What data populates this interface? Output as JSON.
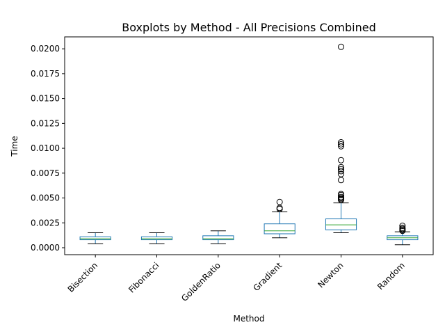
{
  "chart_data": {
    "type": "boxplot",
    "title": "Boxplots by Method - All Precisions Combined",
    "xlabel": "Method",
    "ylabel": "Time",
    "ylim": [
      -0.0007,
      0.0212
    ],
    "yticks": [
      "0.0000",
      "0.0025",
      "0.0050",
      "0.0075",
      "0.0100",
      "0.0125",
      "0.0150",
      "0.0175",
      "0.0200"
    ],
    "ytick_values": [
      0.0,
      0.0025,
      0.005,
      0.0075,
      0.01,
      0.0125,
      0.015,
      0.0175,
      0.02
    ],
    "categories": [
      "Bisection",
      "Fibonacci",
      "GoldenRatio",
      "Gradient",
      "Newton",
      "Random"
    ],
    "boxes": [
      {
        "whisker_low": 0.0004,
        "q1": 0.0008,
        "median": 0.0009,
        "q3": 0.0011,
        "whisker_high": 0.0015,
        "outliers": []
      },
      {
        "whisker_low": 0.0004,
        "q1": 0.0008,
        "median": 0.0009,
        "q3": 0.0011,
        "whisker_high": 0.0015,
        "outliers": []
      },
      {
        "whisker_low": 0.0004,
        "q1": 0.0008,
        "median": 0.0009,
        "q3": 0.0012,
        "whisker_high": 0.0017,
        "outliers": []
      },
      {
        "whisker_low": 0.001,
        "q1": 0.0014,
        "median": 0.0017,
        "q3": 0.0024,
        "whisker_high": 0.0036,
        "outliers": [
          0.0039,
          0.004,
          0.0046
        ]
      },
      {
        "whisker_low": 0.0015,
        "q1": 0.0018,
        "median": 0.0023,
        "q3": 0.0029,
        "whisker_high": 0.0045,
        "outliers": [
          0.0048,
          0.0049,
          0.005,
          0.0051,
          0.0053,
          0.0054,
          0.0068,
          0.0074,
          0.0077,
          0.0079,
          0.0081,
          0.0088,
          0.0102,
          0.0104,
          0.0106,
          0.0202
        ]
      },
      {
        "whisker_low": 0.0003,
        "q1": 0.0008,
        "median": 0.001,
        "q3": 0.0012,
        "whisker_high": 0.0016,
        "outliers": [
          0.0017,
          0.0018,
          0.0019,
          0.002,
          0.0022
        ]
      }
    ],
    "colors": {
      "box": "#1f77b4",
      "median": "#2ca02c",
      "whisker_cap": "#000000",
      "outlier": "#000000",
      "axes": "#000000"
    },
    "grid": false,
    "legend": "none"
  }
}
